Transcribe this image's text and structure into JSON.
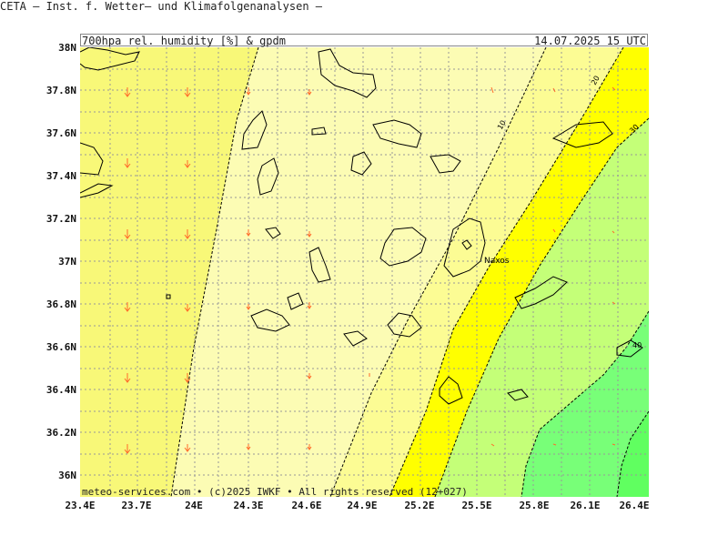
{
  "header": {
    "title": "CETA – Inst. f. Wetter– und Klimafolgenanalysen –",
    "product": "700hpa rel. humidity [%] & gpdm",
    "datetime": "14.07.2025 15 UTC"
  },
  "footer": "meteo-services.com • (c)2025 IWKF • All rights reserved (12+027)",
  "map_labels": {
    "place": "Naxos",
    "contour_10": "10",
    "contour_20": "20",
    "contour_30": "30",
    "contour_40": "40"
  },
  "axes": {
    "lat_labels": [
      "38N",
      "37.8N",
      "37.6N",
      "37.4N",
      "37.2N",
      "37N",
      "36.8N",
      "36.6N",
      "36.4N",
      "36.2N",
      "36N"
    ],
    "lon_labels": [
      "23.4E",
      "23.7E",
      "24E",
      "24.3E",
      "24.6E",
      "24.9E",
      "25.2E",
      "25.5E",
      "25.8E",
      "26.1E",
      "26.4E"
    ]
  },
  "colors": {
    "band_lt_yellow": "#f8f878",
    "band_pale": "#fcfcb4",
    "band_yellow": "#ffff00",
    "band_lt_green": "#c4ff78",
    "band_green": "#78ff78",
    "band_bright_green": "#60ff60",
    "grid": "#999999",
    "arrow": "#ff6a2a"
  }
}
